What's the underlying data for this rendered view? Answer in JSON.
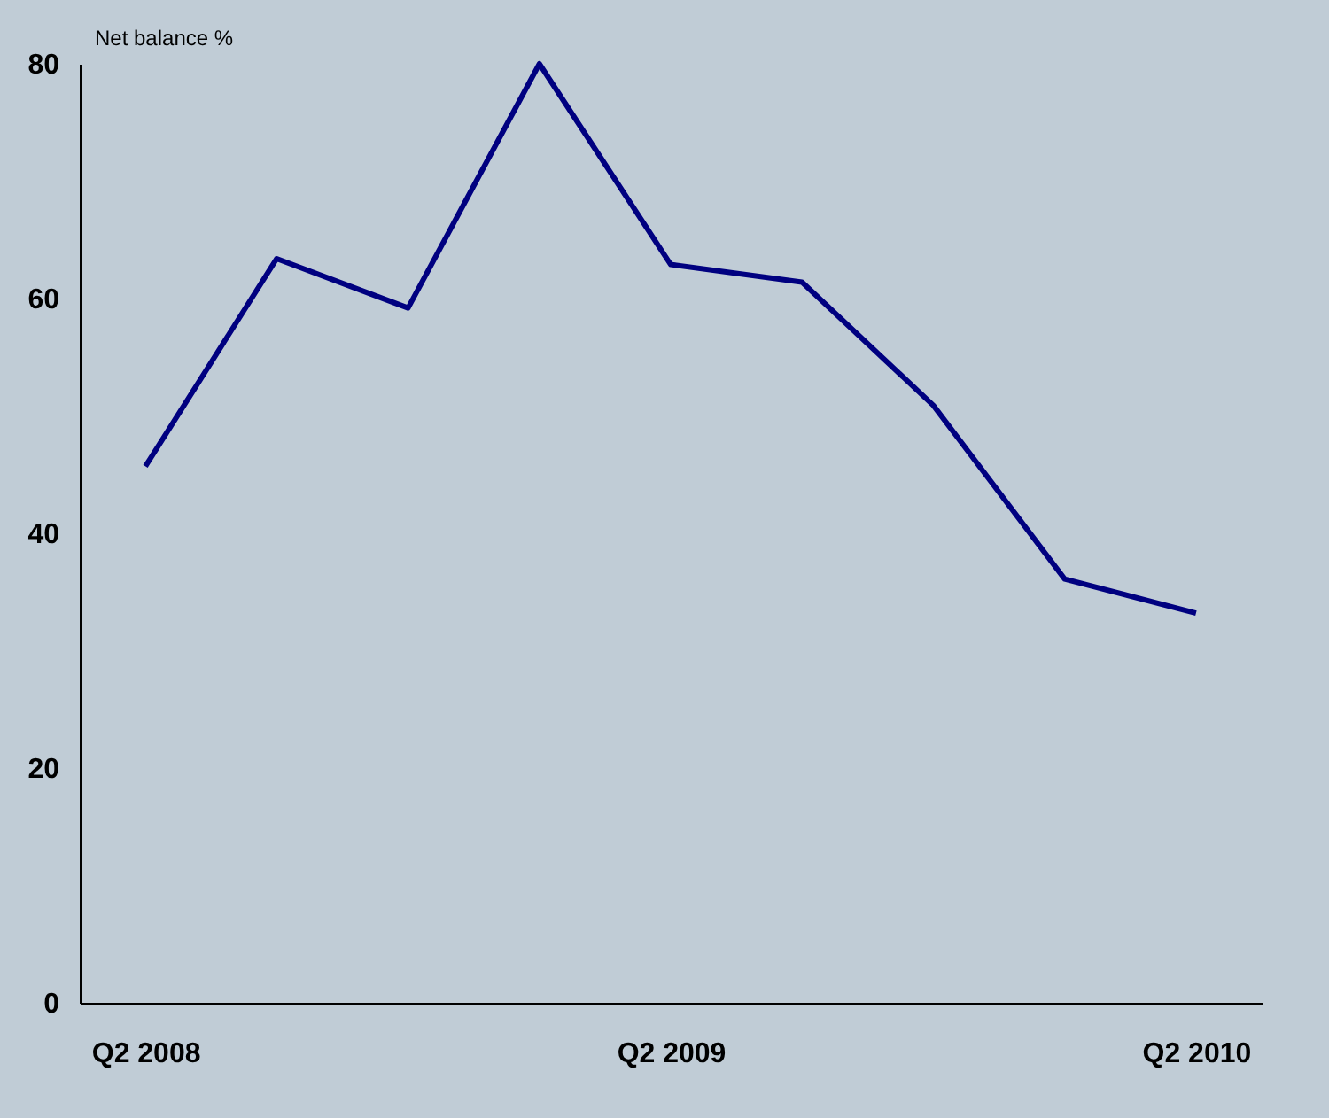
{
  "chart_data": {
    "type": "line",
    "ylabel": "Net balance %",
    "categories": [
      "Q2 2008",
      null,
      null,
      null,
      "Q2 2009",
      null,
      null,
      null,
      "Q2 2010"
    ],
    "series": [
      {
        "color": "#000080",
        "values": [
          45.7,
          63.4,
          59.2,
          80,
          62.9,
          61.4,
          50.9,
          36.1,
          33.2
        ]
      }
    ],
    "ylim": [
      0,
      80
    ],
    "yticks": [
      0,
      20,
      40,
      60,
      80
    ],
    "grid": false,
    "legend": false,
    "marker": "none",
    "line_style": "solid"
  }
}
